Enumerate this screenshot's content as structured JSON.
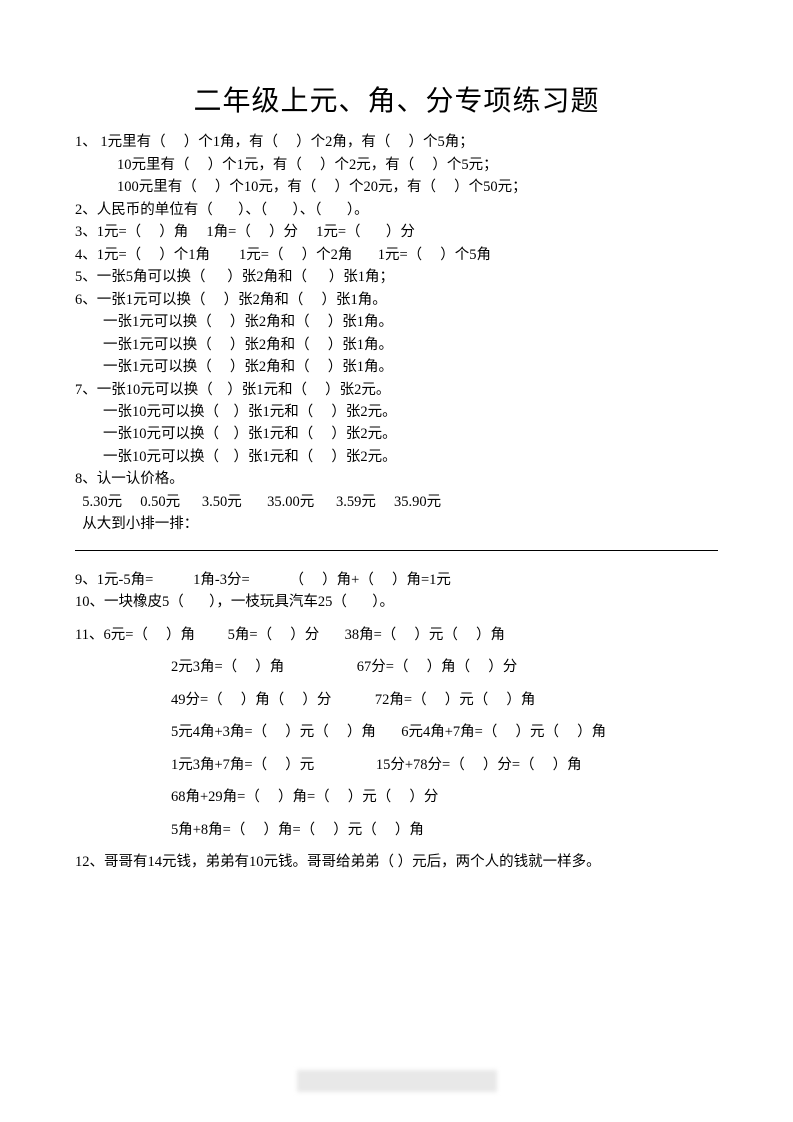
{
  "title": "二年级上元、角、分专项练习题",
  "q1": {
    "l1": "1、 1元里有（     ）个1角，有（     ）个2角，有（     ）个5角；",
    "l2": "10元里有（     ）个1元，有（     ）个2元，有（     ）个5元；",
    "l3": "100元里有（     ）个10元，有（     ）个20元，有（     ）个50元；"
  },
  "q2": "2、人民币的单位有（       ）、（       ）、（       ）。",
  "q3": "3、1元=（     ）角     1角=（     ）分     1元=（       ）分",
  "q4": "4、1元=（     ）个1角        1元=（     ）个2角       1元=（     ）个5角",
  "q5": "5、一张5角可以换（      ）张2角和（      ）张1角；",
  "q6": {
    "l1": "6、一张1元可以换（     ）张2角和（     ）张1角。",
    "l2": "一张1元可以换（     ）张2角和（     ）张1角。",
    "l3": "一张1元可以换（     ）张2角和（     ）张1角。",
    "l4": "一张1元可以换（     ）张2角和（     ）张1角。"
  },
  "q7": {
    "l1": "7、一张10元可以换（    ）张1元和（     ）张2元。",
    "l2": "一张10元可以换（    ）张1元和（     ）张2元。",
    "l3": "一张10元可以换（    ）张1元和（     ）张2元。",
    "l4": "一张10元可以换（    ）张1元和（     ）张2元。"
  },
  "q8": {
    "l1": "8、认一认价格。",
    "l2": "  5.30元     0.50元      3.50元       35.00元      3.59元     35.90元",
    "l3": "  从大到小排一排："
  },
  "q9": "9、1元-5角=           1角-3分=           （     ）角+（     ）角=1元",
  "q10": "10、一块橡皮5（       ），一枝玩具汽车25（       ）。",
  "q11": {
    "l1": "11、6元=（     ）角         5角=（     ）分       38角=（     ）元（     ）角",
    "l2": "2元3角=（     ）角                    67分=（     ）角（     ）分",
    "l3": "49分=（     ）角（     ）分            72角=（     ）元（     ）角",
    "l4": "5元4角+3角=（     ）元（     ）角       6元4角+7角=（     ）元（     ）角",
    "l5": "1元3角+7角=（     ）元                 15分+78分=（     ）分=（     ）角",
    "l6": "68角+29角=（     ）角=（     ）元（     ）分",
    "l7": "5角+8角=（     ）角=（     ）元（     ）角"
  },
  "q12": " 12、哥哥有14元钱，弟弟有10元钱。哥哥给弟弟（     ）元后，两个人的钱就一样多。",
  "colors": {
    "text": "#000000",
    "background": "#ffffff",
    "footer": "#e8e8e8"
  },
  "typography": {
    "body_fontsize": 14.5,
    "title_fontsize": 28,
    "font_family": "SimSun"
  }
}
